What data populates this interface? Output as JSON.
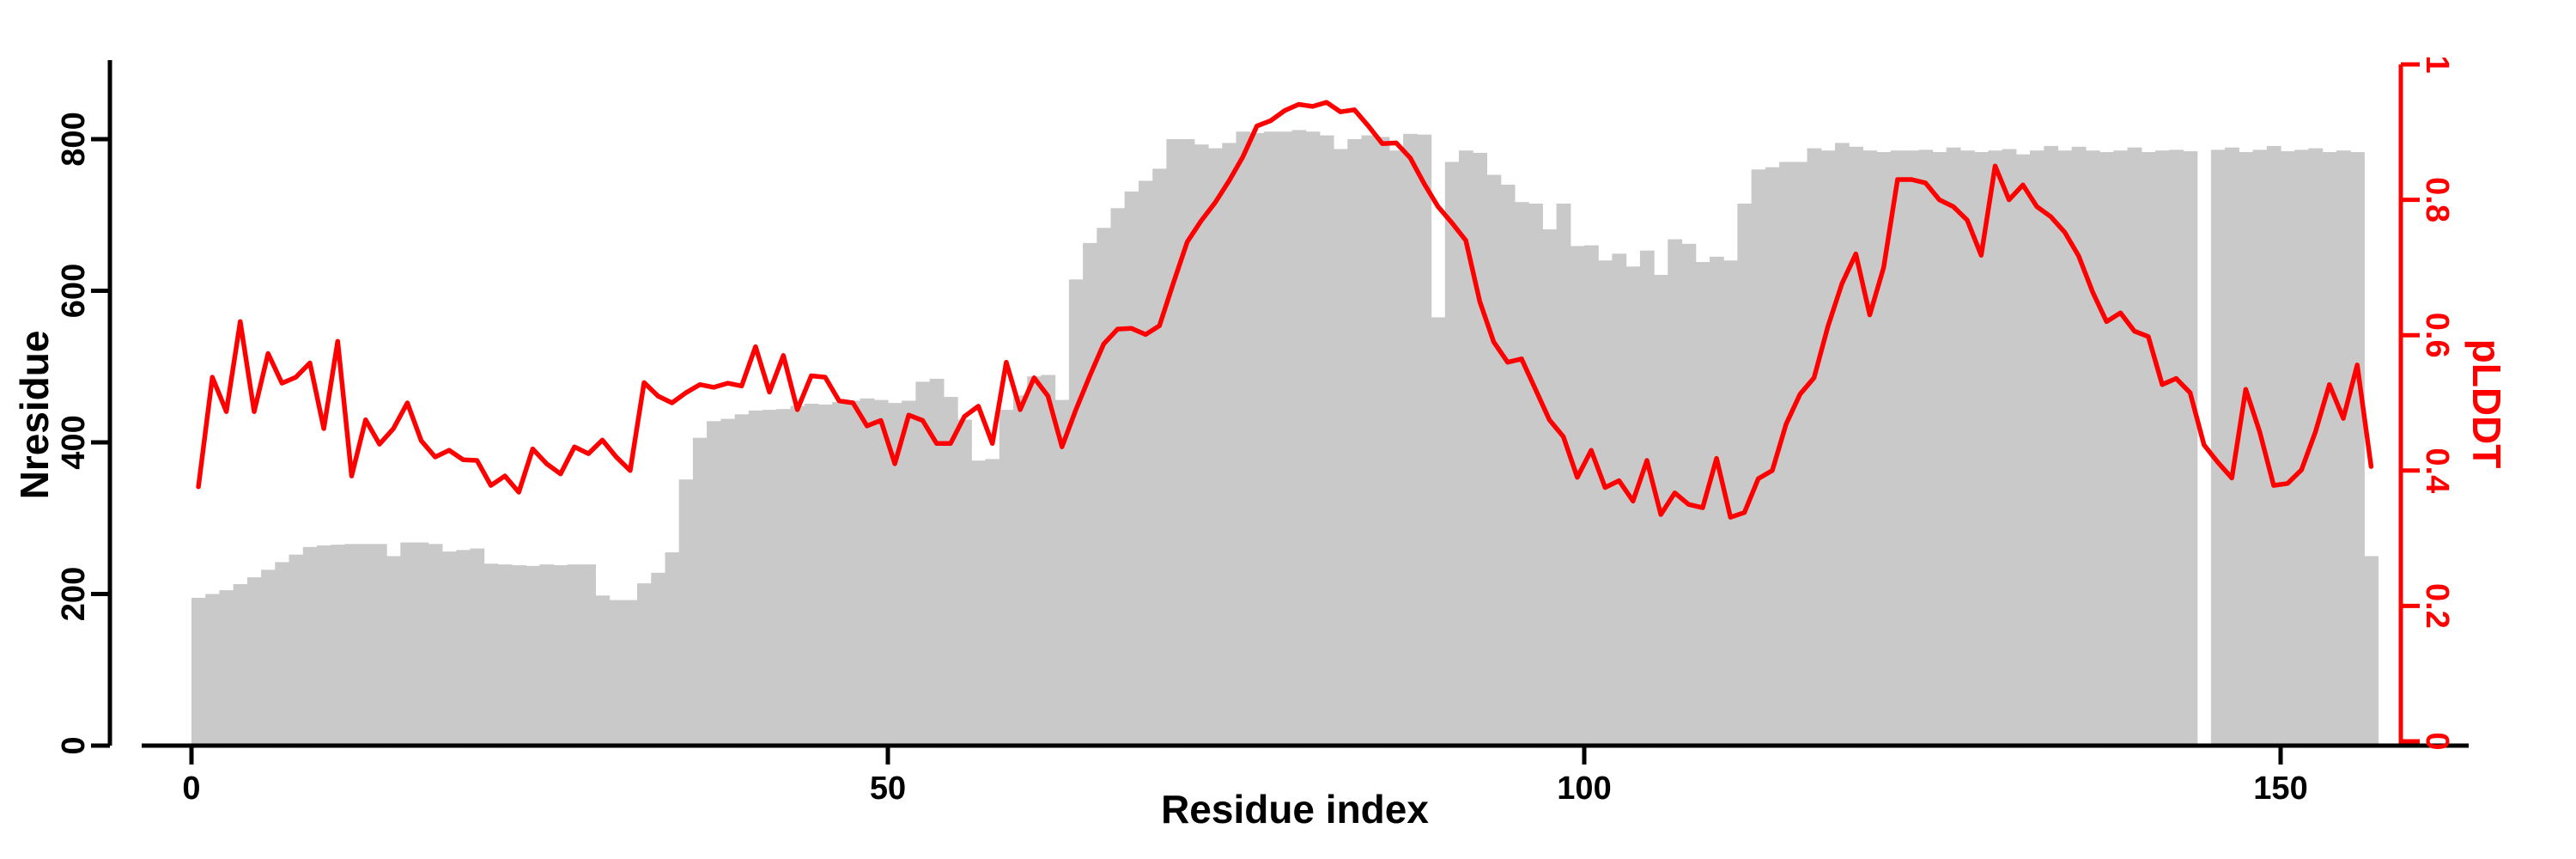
{
  "chart_data": {
    "type": "bar",
    "subtype": "dual-axis bar+line (MSA coverage depth with per-residue pLDDT overlay)",
    "title": "",
    "xlabel": "Residue index",
    "ylabel_left": "Nresidue",
    "ylabel_right": "pLDDT",
    "x_start": 0,
    "n_points": 157,
    "x_tick_values": [
      0,
      50,
      100,
      150
    ],
    "x_tick_labels": [
      "0",
      "50",
      "100",
      "150"
    ],
    "y_left_tick_values": [
      0,
      200,
      400,
      600,
      800
    ],
    "y_left_tick_labels": [
      "0",
      "200",
      "400",
      "600",
      "800"
    ],
    "y_right_tick_values": [
      0,
      0.2,
      0.4,
      0.6,
      0.8,
      1
    ],
    "y_right_tick_labels": [
      "0",
      "0.2",
      "0.4",
      "0.6",
      "0.8",
      "1"
    ],
    "ylim_left": [
      0,
      905
    ],
    "ylim_right": [
      0,
      1
    ],
    "grid": false,
    "legend": "none",
    "colors": {
      "bars": "#c9c9c9",
      "line": "#ff0000",
      "axis_left": "#000000",
      "axis_bottom": "#000000",
      "axis_right": "#ff0000",
      "background": "#ffffff"
    },
    "series": [
      {
        "name": "Nresidue",
        "type": "bar",
        "axis": "left",
        "values": [
          195,
          200,
          205,
          213,
          222,
          232,
          242,
          252,
          262,
          264,
          265,
          266,
          266,
          266,
          250,
          268,
          268,
          266,
          256,
          258,
          260,
          240,
          239,
          238,
          237,
          239,
          238,
          239,
          239,
          198,
          192,
          192,
          214,
          228,
          255,
          351,
          406,
          428,
          431,
          437,
          442,
          443,
          444,
          448,
          451,
          450,
          453,
          455,
          458,
          456,
          452,
          455,
          480,
          484,
          460,
          430,
          376,
          378,
          443,
          462,
          487,
          489,
          456,
          615,
          663,
          683,
          709,
          731,
          745,
          761,
          800,
          800,
          793,
          788,
          795,
          810,
          808,
          810,
          810,
          812,
          810,
          805,
          787,
          800,
          805,
          803,
          785,
          807,
          806,
          565,
          770,
          785,
          782,
          753,
          740,
          717,
          715,
          681,
          715,
          659,
          660,
          640,
          649,
          632,
          653,
          621,
          668,
          662,
          638,
          645,
          640,
          715,
          760,
          763,
          770,
          770,
          788,
          785,
          795,
          790,
          785,
          783,
          785,
          785,
          786,
          783,
          789,
          785,
          783,
          785,
          787,
          780,
          785,
          791,
          785,
          790,
          785,
          783,
          785,
          789,
          783,
          785,
          786,
          784,
          0,
          786,
          789,
          783,
          786,
          791,
          784,
          786,
          788,
          783,
          785,
          783,
          250
        ]
      },
      {
        "name": "pLDDT",
        "type": "line",
        "axis": "right",
        "values": [
          0.376,
          0.538,
          0.487,
          0.62,
          0.487,
          0.573,
          0.529,
          0.538,
          0.559,
          0.462,
          0.591,
          0.392,
          0.475,
          0.439,
          0.462,
          0.5,
          0.444,
          0.42,
          0.43,
          0.416,
          0.415,
          0.378,
          0.392,
          0.368,
          0.432,
          0.41,
          0.395,
          0.435,
          0.425,
          0.445,
          0.42,
          0.4,
          0.53,
          0.51,
          0.5,
          0.515,
          0.527,
          0.523,
          0.529,
          0.525,
          0.583,
          0.516,
          0.57,
          0.49,
          0.54,
          0.538,
          0.503,
          0.5,
          0.466,
          0.474,
          0.41,
          0.482,
          0.474,
          0.44,
          0.44,
          0.48,
          0.495,
          0.44,
          0.56,
          0.49,
          0.537,
          0.51,
          0.435,
          0.49,
          0.54,
          0.587,
          0.609,
          0.61,
          0.601,
          0.614,
          0.677,
          0.738,
          0.769,
          0.796,
          0.828,
          0.864,
          0.909,
          0.917,
          0.932,
          0.941,
          0.938,
          0.944,
          0.93,
          0.933,
          0.909,
          0.883,
          0.884,
          0.862,
          0.824,
          0.79,
          0.766,
          0.74,
          0.65,
          0.59,
          0.56,
          0.565,
          0.52,
          0.475,
          0.45,
          0.39,
          0.43,
          0.375,
          0.385,
          0.355,
          0.415,
          0.335,
          0.367,
          0.35,
          0.345,
          0.418,
          0.331,
          0.338,
          0.388,
          0.4,
          0.469,
          0.513,
          0.537,
          0.613,
          0.676,
          0.72,
          0.63,
          0.7,
          0.83,
          0.83,
          0.825,
          0.8,
          0.79,
          0.77,
          0.718,
          0.85,
          0.8,
          0.822,
          0.79,
          0.775,
          0.752,
          0.717,
          0.664,
          0.62,
          0.633,
          0.606,
          0.598,
          0.527,
          0.536,
          0.515,
          0.438,
          0.412,
          0.389,
          0.52,
          0.457,
          0.378,
          0.381,
          0.401,
          0.457,
          0.527,
          0.477,
          0.556,
          0.406
        ]
      }
    ]
  }
}
